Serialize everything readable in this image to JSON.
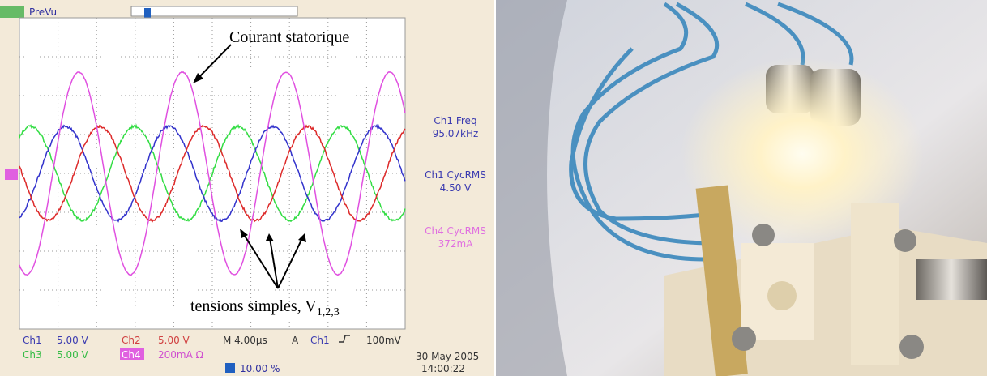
{
  "scope": {
    "status": "PreVu",
    "annotation_current": "Courant statorique",
    "annotation_voltages": "tensions simples, V",
    "annotation_voltages_sub": "1,2,3",
    "measurements": [
      "Ch1 Freq",
      "95.07kHz",
      "Ch1 CycRMS",
      "4.50 V",
      "Ch4 CycRMS",
      "372mA"
    ],
    "row1": [
      "Ch1",
      "5.00 V",
      "Ch2",
      "5.00 V",
      "M 4.00µs",
      "A",
      "Ch1",
      "100mV"
    ],
    "row2": [
      "Ch3",
      "5.00 V",
      "Ch4",
      "200mA Ω"
    ],
    "trigger_position": "10.00 %",
    "date": "30 May 2005",
    "time": "14:00:22"
  }
}
